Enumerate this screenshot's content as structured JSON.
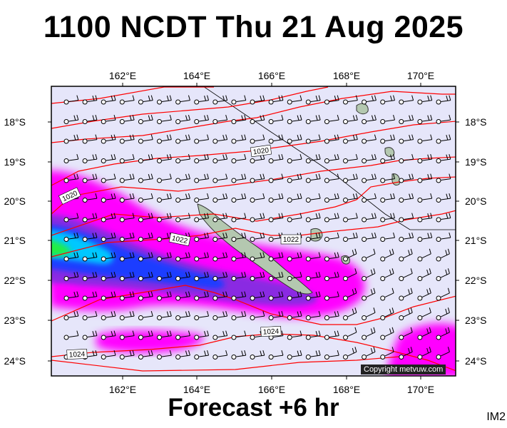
{
  "title": "1100 NCDT Thu 21 Aug 2025",
  "subtitle": "Forecast +6 hr",
  "image_code": "IM2",
  "copyright": "Copyright metvuw.com",
  "lon_labels": [
    "162°E",
    "164°E",
    "166°E",
    "168°E",
    "170°E"
  ],
  "lat_labels": [
    "18°S",
    "19°S",
    "20°S",
    "21°S",
    "22°S",
    "23°S",
    "24°S"
  ],
  "isobar_labels": [
    "1020",
    "1020",
    "1022",
    "1022",
    "1024",
    "1024"
  ],
  "colors": {
    "map_background": "#e6e6fa",
    "isobar": "#ff0000",
    "precip_light": "#ff00ff",
    "precip_medium": "#8a2be2",
    "precip_heavy": "#1e3cff",
    "precip_very_heavy": "#00c8ff",
    "precip_extreme": "#22ee44",
    "land": "#b4c8b0"
  },
  "icons": [
    "wind-barb-icon",
    "station-circle-icon"
  ]
}
